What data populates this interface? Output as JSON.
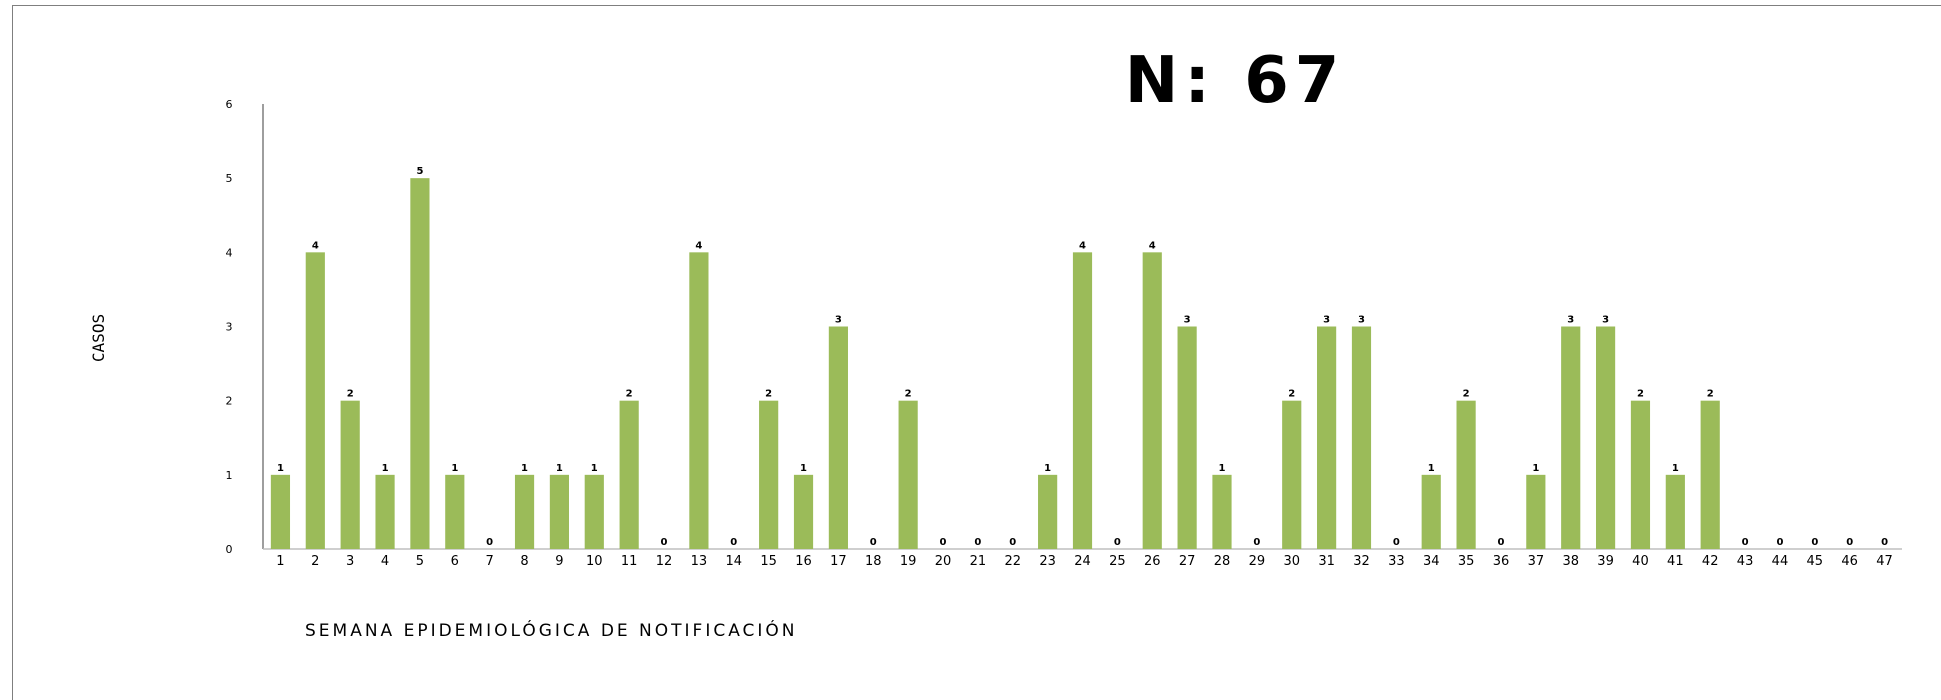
{
  "chart_data": {
    "type": "bar",
    "title": "N: 67",
    "xlabel": "SEMANA EPIDEMIOLÓGICA DE NOTIFICACIÓN",
    "ylabel": "CASOS",
    "ylim": [
      0,
      6
    ],
    "yticks": [
      "0",
      "1",
      "2",
      "3",
      "4",
      "5",
      "6"
    ],
    "categories": [
      "1",
      "2",
      "3",
      "4",
      "5",
      "6",
      "7",
      "8",
      "9",
      "10",
      "11",
      "12",
      "13",
      "14",
      "15",
      "16",
      "17",
      "18",
      "19",
      "20",
      "21",
      "22",
      "23",
      "24",
      "25",
      "26",
      "27",
      "28",
      "29",
      "30",
      "31",
      "32",
      "33",
      "34",
      "35",
      "36",
      "37",
      "38",
      "39",
      "40",
      "41",
      "42",
      "43",
      "44",
      "45",
      "46",
      "47"
    ],
    "values": [
      1,
      4,
      2,
      1,
      5,
      1,
      0,
      1,
      1,
      1,
      2,
      0,
      4,
      0,
      2,
      1,
      3,
      0,
      2,
      0,
      0,
      0,
      1,
      4,
      0,
      4,
      3,
      1,
      0,
      2,
      3,
      3,
      0,
      1,
      2,
      0,
      1,
      3,
      3,
      2,
      1,
      2,
      0,
      0,
      0,
      0,
      0
    ],
    "bar_color": "#9bbb59",
    "grid": false,
    "legend": "none"
  }
}
